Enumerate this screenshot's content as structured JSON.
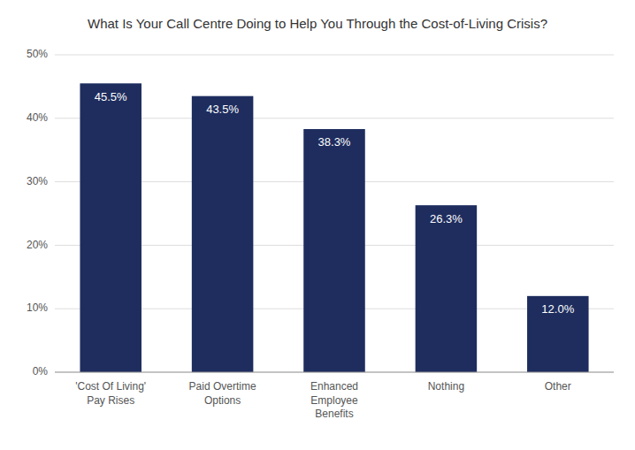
{
  "chart_data": {
    "type": "bar",
    "title": "What Is Your Call Centre Doing to Help You Through the Cost-of-Living Crisis?",
    "categories": [
      "'Cost Of Living'\nPay Rises",
      "Paid Overtime\nOptions",
      "Enhanced\nEmployee\nBenefits",
      "Nothing",
      "Other"
    ],
    "values": [
      45.5,
      43.5,
      38.3,
      26.3,
      12.0
    ],
    "value_labels": [
      "45.5%",
      "43.5%",
      "38.3%",
      "26.3%",
      "12.0%"
    ],
    "data_labels": true,
    "color": "#1e2d5e",
    "ylim": [
      0,
      50
    ],
    "yticks": [
      {
        "value": 0,
        "label": "0%"
      },
      {
        "value": 10,
        "label": "10%"
      },
      {
        "value": 20,
        "label": "20%"
      },
      {
        "value": 30,
        "label": "30%"
      },
      {
        "value": 40,
        "label": "40%"
      },
      {
        "value": 50,
        "label": "50%"
      }
    ],
    "grid": true
  }
}
